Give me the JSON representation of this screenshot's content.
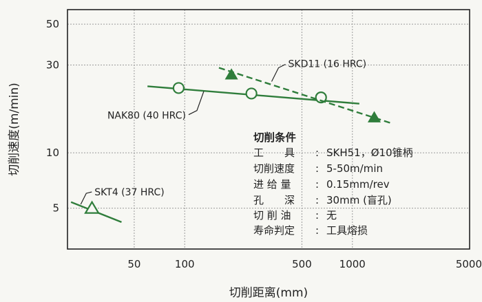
{
  "chart_data": {
    "type": "line",
    "xscale": "log",
    "yscale": "log",
    "xlabel": "切削距离(mm)",
    "ylabel": "切削速度(m/min)",
    "xlim": [
      20,
      5000
    ],
    "ylim": [
      3,
      60
    ],
    "grid": true,
    "xticks": [
      50,
      100,
      500,
      1000,
      5000
    ],
    "yticks": [
      5,
      10,
      30,
      50
    ],
    "series": [
      {
        "name": "NAK80 (40 HRC)",
        "color": "#2f7d3b",
        "line_style": "solid",
        "marker": "circle-open",
        "line_x": [
          60,
          1100
        ],
        "line_y": [
          23,
          18.5
        ],
        "points": [
          {
            "x": 92,
            "y": 22.5
          },
          {
            "x": 250,
            "y": 21
          },
          {
            "x": 650,
            "y": 20
          }
        ]
      },
      {
        "name": "SKD11 (16 HRC)",
        "color": "#2f7d3b",
        "line_style": "dashed",
        "marker": "triangle-filled",
        "line_x": [
          160,
          1700
        ],
        "line_y": [
          29,
          14.5
        ],
        "points": [
          {
            "x": 190,
            "y": 26.5
          },
          {
            "x": 1350,
            "y": 15.5
          }
        ]
      },
      {
        "name": "SKT4 (37 HRC)",
        "color": "#2f7d3b",
        "line_style": "solid",
        "marker": "triangle-open",
        "line_x": [
          21,
          42
        ],
        "line_y": [
          5.4,
          4.2
        ],
        "points": [
          {
            "x": 28,
            "y": 5.0
          }
        ]
      }
    ],
    "annotations": [
      {
        "series": 1,
        "text": "SKD11 (16 HRC)",
        "anchor": "above-right"
      },
      {
        "series": 0,
        "text": "NAK80 (40 HRC)",
        "anchor": "below-left"
      },
      {
        "series": 2,
        "text": "SKT4 (37 HRC)",
        "anchor": "above-right"
      }
    ],
    "note": {
      "title": "切削条件",
      "rows": [
        {
          "label": "工　　具",
          "value": "SKH51，Ø10锥柄"
        },
        {
          "label": "切削速度",
          "value": "5-50m/min"
        },
        {
          "label": "进 给 量",
          "value": "0.15mm/rev"
        },
        {
          "label": "孔　　深",
          "value": "30mm (盲孔)"
        },
        {
          "label": "切 削 油",
          "value": "无"
        },
        {
          "label": "寿命判定",
          "value": "工具熔损"
        }
      ]
    }
  }
}
